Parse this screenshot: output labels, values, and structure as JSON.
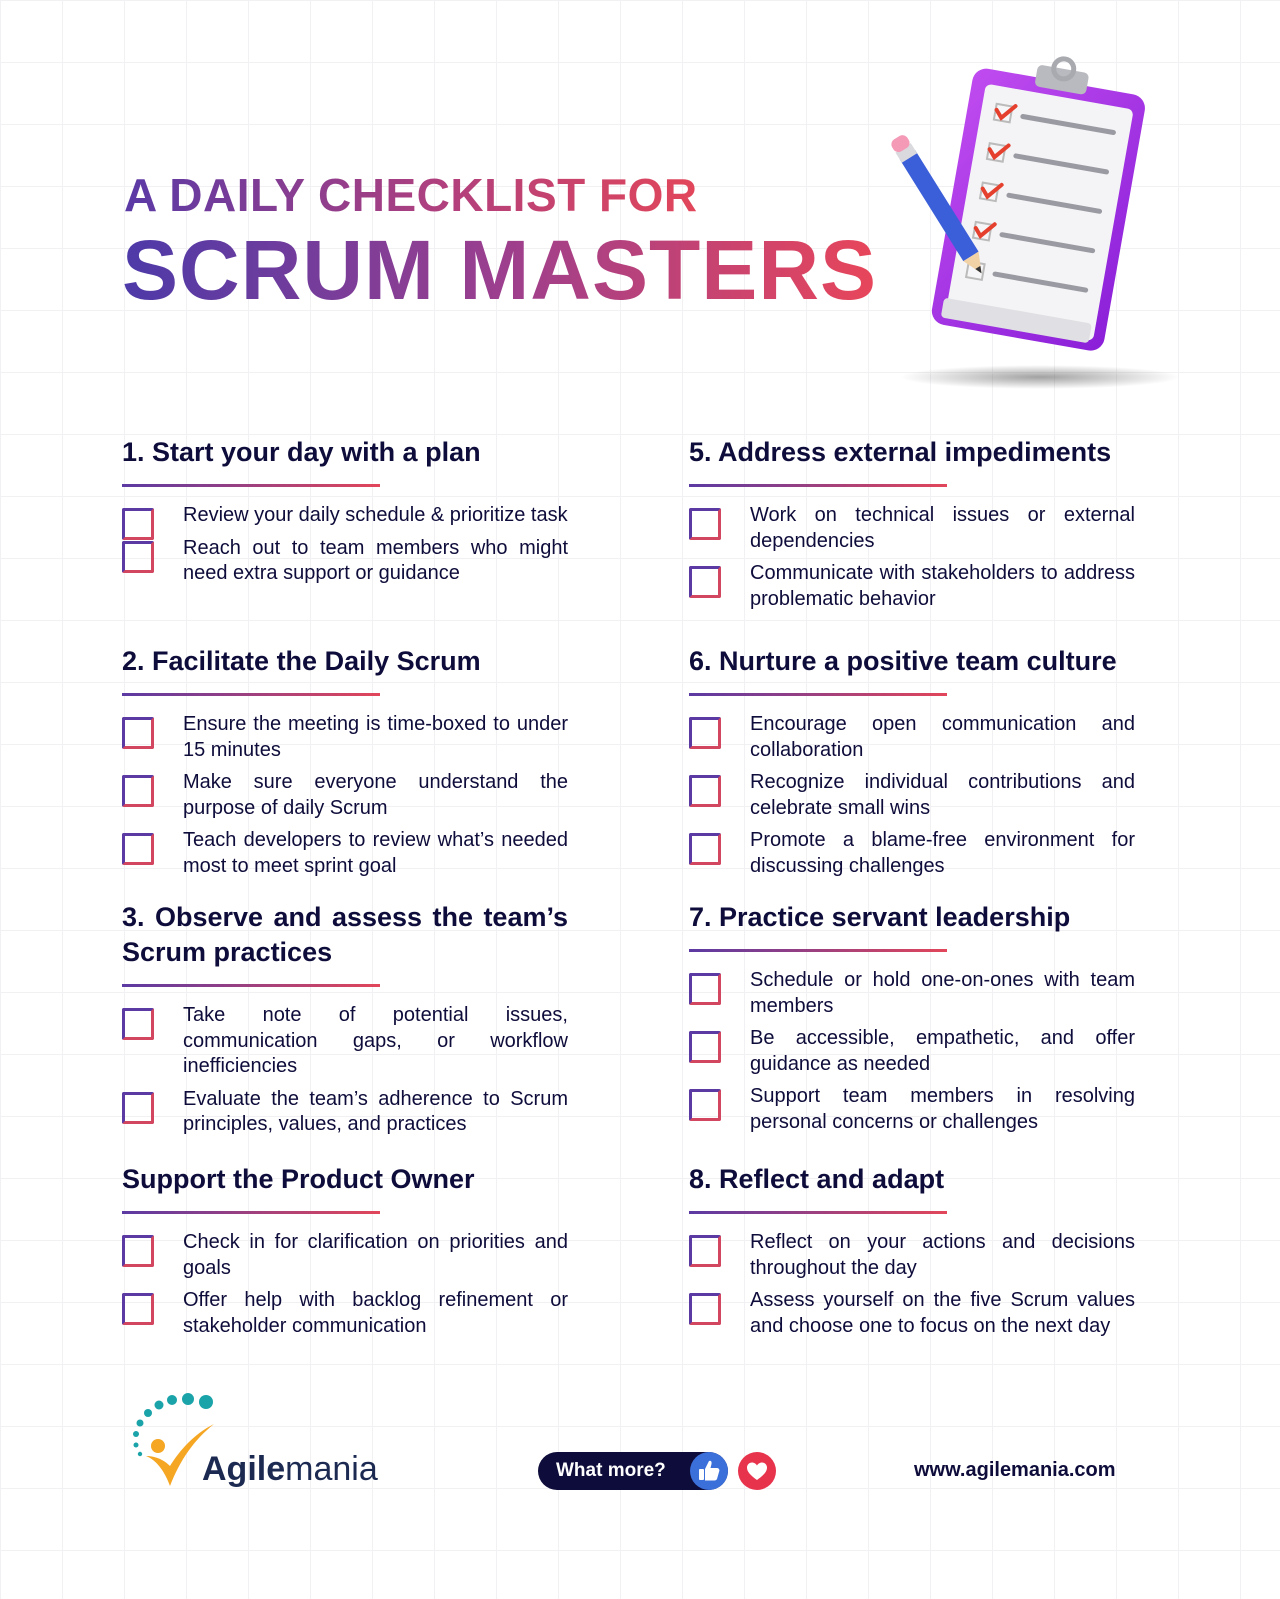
{
  "header": {
    "line1": "A DAILY CHECKLIST FOR",
    "line2": "SCRUM MASTERS"
  },
  "sections": [
    {
      "title": "1. Start your day with a plan",
      "items": [
        "Review your daily schedule & prioritize task",
        "Reach out to team members who might need extra support or guidance"
      ]
    },
    {
      "title": "2. Facilitate the Daily Scrum",
      "items": [
        "Ensure the meeting is time-boxed to under 15 minutes",
        "Make sure everyone understand the purpose of daily Scrum",
        "Teach developers to review what’s needed most to meet sprint goal"
      ]
    },
    {
      "title": "3. Observe and assess the team’s Scrum practices",
      "items": [
        "Take note of potential issues, communication gaps, or workflow inefficiencies",
        "Evaluate the team’s adherence to Scrum principles, values, and practices"
      ]
    },
    {
      "title": "Support the Product Owner",
      "items": [
        "Check in for clarification on priorities and goals",
        "Offer help with backlog refinement or stakeholder communication"
      ]
    },
    {
      "title": "5. Address external impediments",
      "items": [
        "Work on technical issues or external dependencies",
        "Communicate with stakeholders to address problematic behavior"
      ]
    },
    {
      "title": "6. Nurture a positive team culture",
      "items": [
        "Encourage open communication and collaboration",
        "Recognize individual contributions and celebrate small wins",
        "Promote a blame-free environment for discussing challenges"
      ]
    },
    {
      "title": "7. Practice servant leadership",
      "items": [
        "Schedule or hold one-on-ones with team members",
        "Be accessible, empathetic, and offer guidance as needed",
        "Support team members in resolving personal concerns or challenges"
      ]
    },
    {
      "title": "8. Reflect and adapt",
      "items": [
        "Reflect on your actions and decisions throughout the day",
        "Assess yourself on the five Scrum values and choose one to focus on the next day"
      ]
    }
  ],
  "footer": {
    "brand_bold": "Agile",
    "brand_light": "mania",
    "pill_text": "What more?",
    "website": "www.agilemania.com",
    "icons": [
      "thumbs-up-icon",
      "heart-icon"
    ],
    "colors": {
      "navy": "#0e0c3a",
      "purple": "#5b3aa3",
      "pink": "#e2465a",
      "teal": "#1aa3a8",
      "orange": "#f5a623"
    }
  }
}
